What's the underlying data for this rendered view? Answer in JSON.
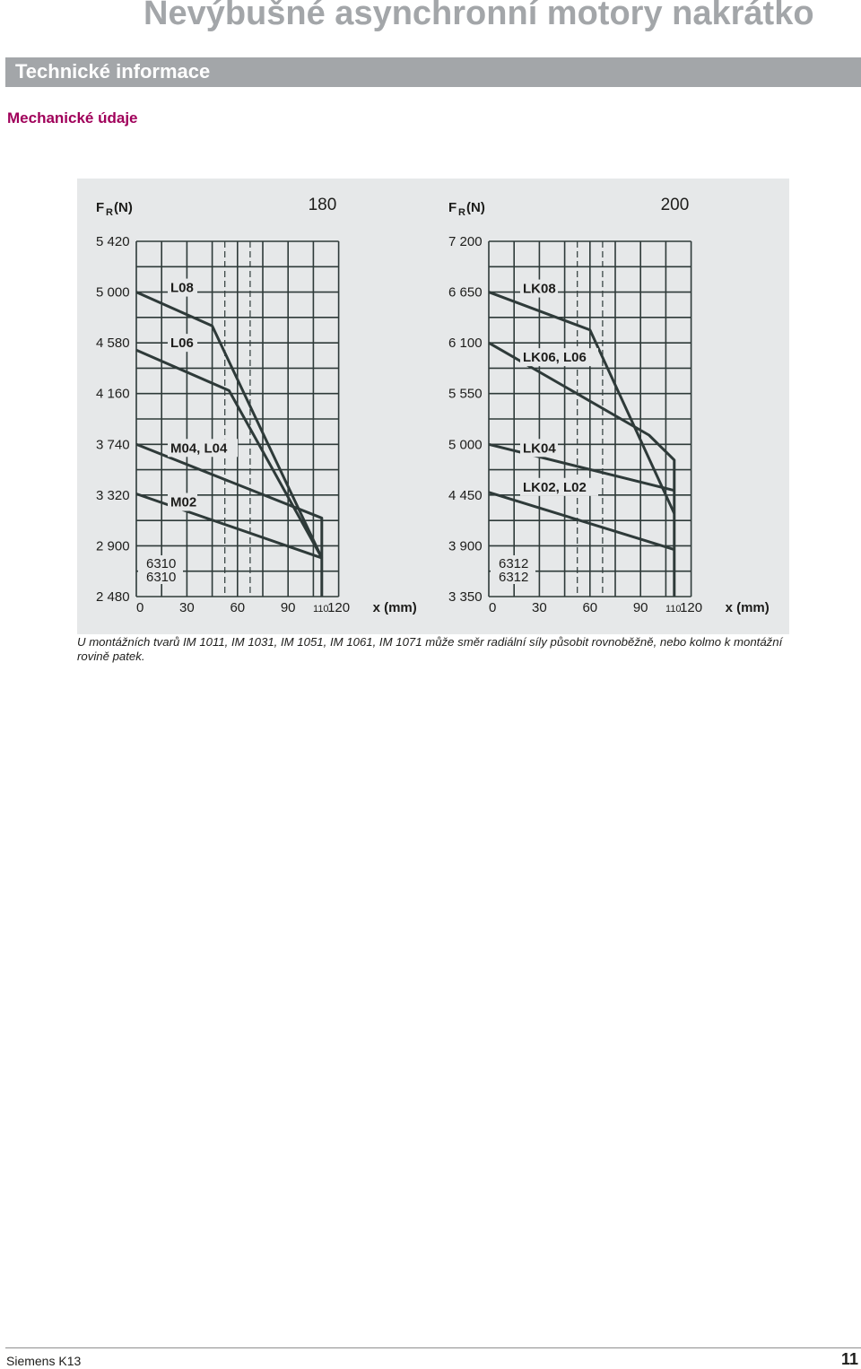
{
  "header": {
    "title": "Nevýbušné asynchronní motory nakrátko",
    "section": "Technické informace",
    "subsection": "Mechanické údaje"
  },
  "note": "U montážních tvarů IM 1011, IM 1031, IM 1051, IM 1061, IM 1071 může směr radiální síly působit rovnoběžně, nebo kolmo k montáž­ní rovině patek.",
  "footer": {
    "left": "Siemens K13",
    "page": "11"
  },
  "colors": {
    "title_gray": "#a3a6a9",
    "accent": "#a0005a",
    "panel": "#e6e8e9",
    "grid": "#2e3a39"
  },
  "chart_data": [
    {
      "type": "line",
      "frame_size": "180",
      "ylabel_main": "F",
      "ylabel_sub": "R",
      "ylabel_unit": "(N)",
      "xlabel": "x (mm)",
      "x_ticks": [
        "0",
        "30",
        "60",
        "90",
        "120"
      ],
      "x_tick_extra": "110",
      "y_ticks": [
        "2 480",
        "2 900",
        "3 320",
        "3 740",
        "4 160",
        "4 580",
        "5 000",
        "5 420"
      ],
      "bearing_labels": [
        "6310",
        "6310"
      ],
      "series": [
        {
          "name": "L08",
          "x": [
            0,
            45,
            110
          ],
          "y": [
            5000,
            4720,
            2800
          ]
        },
        {
          "name": "L06",
          "x": [
            0,
            55,
            110
          ],
          "y": [
            4520,
            4185,
            2800
          ]
        },
        {
          "name": "M04, L04",
          "x": [
            0,
            110,
            110
          ],
          "y": [
            3740,
            3130,
            2480
          ]
        },
        {
          "name": "M02",
          "x": [
            0,
            110
          ],
          "y": [
            3330,
            2800
          ]
        }
      ]
    },
    {
      "type": "line",
      "frame_size": "200",
      "ylabel_main": "F",
      "ylabel_sub": "R",
      "ylabel_unit": "(N)",
      "xlabel": "x (mm)",
      "x_ticks": [
        "0",
        "30",
        "60",
        "90",
        "120"
      ],
      "x_tick_extra": "110",
      "y_ticks": [
        "3 350",
        "3 900",
        "4 450",
        "5 000",
        "5 550",
        "6 100",
        "6 650",
        "7 200"
      ],
      "bearing_labels": [
        "6312",
        "6312"
      ],
      "series": [
        {
          "name": "LK08",
          "x": [
            0,
            60,
            110
          ],
          "y": [
            6650,
            6240,
            4250
          ]
        },
        {
          "name": "LK06, L06",
          "x": [
            0,
            95,
            110,
            110
          ],
          "y": [
            6100,
            5100,
            4830,
            3350
          ]
        },
        {
          "name": "LK04",
          "x": [
            0,
            110
          ],
          "y": [
            5000,
            4500
          ]
        },
        {
          "name": "LK02, L02",
          "x": [
            0,
            110
          ],
          "y": [
            4480,
            3860
          ]
        }
      ]
    }
  ]
}
